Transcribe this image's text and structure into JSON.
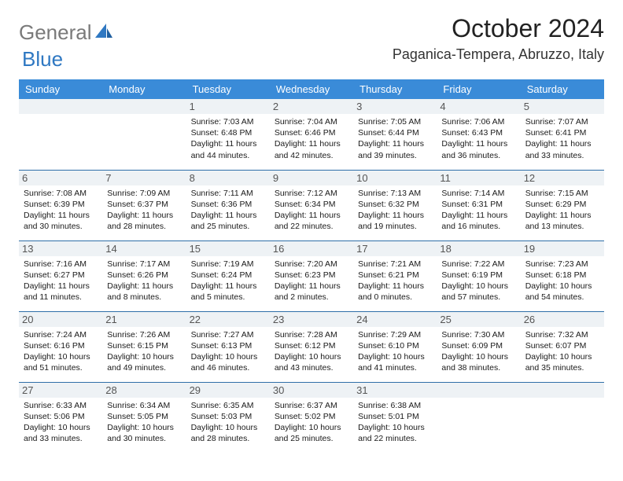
{
  "brand": {
    "text1": "General",
    "text2": "Blue"
  },
  "title": "October 2024",
  "location": "Paganica-Tempera, Abruzzo, Italy",
  "colors": {
    "header_bg": "#3a8bd8",
    "header_text": "#ffffff",
    "row_divider": "#2f6fa8",
    "daynum_bg": "#eef2f5",
    "brand_gray": "#7a7a7a",
    "brand_blue": "#2f78c2"
  },
  "typography": {
    "title_fontsize": 32,
    "location_fontsize": 18,
    "dayheader_fontsize": 13,
    "cell_fontsize": 10.5
  },
  "day_headers": [
    "Sunday",
    "Monday",
    "Tuesday",
    "Wednesday",
    "Thursday",
    "Friday",
    "Saturday"
  ],
  "weeks": [
    [
      null,
      null,
      {
        "n": "1",
        "sunrise": "7:03 AM",
        "sunset": "6:48 PM",
        "daylight": "11 hours and 44 minutes."
      },
      {
        "n": "2",
        "sunrise": "7:04 AM",
        "sunset": "6:46 PM",
        "daylight": "11 hours and 42 minutes."
      },
      {
        "n": "3",
        "sunrise": "7:05 AM",
        "sunset": "6:44 PM",
        "daylight": "11 hours and 39 minutes."
      },
      {
        "n": "4",
        "sunrise": "7:06 AM",
        "sunset": "6:43 PM",
        "daylight": "11 hours and 36 minutes."
      },
      {
        "n": "5",
        "sunrise": "7:07 AM",
        "sunset": "6:41 PM",
        "daylight": "11 hours and 33 minutes."
      }
    ],
    [
      {
        "n": "6",
        "sunrise": "7:08 AM",
        "sunset": "6:39 PM",
        "daylight": "11 hours and 30 minutes."
      },
      {
        "n": "7",
        "sunrise": "7:09 AM",
        "sunset": "6:37 PM",
        "daylight": "11 hours and 28 minutes."
      },
      {
        "n": "8",
        "sunrise": "7:11 AM",
        "sunset": "6:36 PM",
        "daylight": "11 hours and 25 minutes."
      },
      {
        "n": "9",
        "sunrise": "7:12 AM",
        "sunset": "6:34 PM",
        "daylight": "11 hours and 22 minutes."
      },
      {
        "n": "10",
        "sunrise": "7:13 AM",
        "sunset": "6:32 PM",
        "daylight": "11 hours and 19 minutes."
      },
      {
        "n": "11",
        "sunrise": "7:14 AM",
        "sunset": "6:31 PM",
        "daylight": "11 hours and 16 minutes."
      },
      {
        "n": "12",
        "sunrise": "7:15 AM",
        "sunset": "6:29 PM",
        "daylight": "11 hours and 13 minutes."
      }
    ],
    [
      {
        "n": "13",
        "sunrise": "7:16 AM",
        "sunset": "6:27 PM",
        "daylight": "11 hours and 11 minutes."
      },
      {
        "n": "14",
        "sunrise": "7:17 AM",
        "sunset": "6:26 PM",
        "daylight": "11 hours and 8 minutes."
      },
      {
        "n": "15",
        "sunrise": "7:19 AM",
        "sunset": "6:24 PM",
        "daylight": "11 hours and 5 minutes."
      },
      {
        "n": "16",
        "sunrise": "7:20 AM",
        "sunset": "6:23 PM",
        "daylight": "11 hours and 2 minutes."
      },
      {
        "n": "17",
        "sunrise": "7:21 AM",
        "sunset": "6:21 PM",
        "daylight": "11 hours and 0 minutes."
      },
      {
        "n": "18",
        "sunrise": "7:22 AM",
        "sunset": "6:19 PM",
        "daylight": "10 hours and 57 minutes."
      },
      {
        "n": "19",
        "sunrise": "7:23 AM",
        "sunset": "6:18 PM",
        "daylight": "10 hours and 54 minutes."
      }
    ],
    [
      {
        "n": "20",
        "sunrise": "7:24 AM",
        "sunset": "6:16 PM",
        "daylight": "10 hours and 51 minutes."
      },
      {
        "n": "21",
        "sunrise": "7:26 AM",
        "sunset": "6:15 PM",
        "daylight": "10 hours and 49 minutes."
      },
      {
        "n": "22",
        "sunrise": "7:27 AM",
        "sunset": "6:13 PM",
        "daylight": "10 hours and 46 minutes."
      },
      {
        "n": "23",
        "sunrise": "7:28 AM",
        "sunset": "6:12 PM",
        "daylight": "10 hours and 43 minutes."
      },
      {
        "n": "24",
        "sunrise": "7:29 AM",
        "sunset": "6:10 PM",
        "daylight": "10 hours and 41 minutes."
      },
      {
        "n": "25",
        "sunrise": "7:30 AM",
        "sunset": "6:09 PM",
        "daylight": "10 hours and 38 minutes."
      },
      {
        "n": "26",
        "sunrise": "7:32 AM",
        "sunset": "6:07 PM",
        "daylight": "10 hours and 35 minutes."
      }
    ],
    [
      {
        "n": "27",
        "sunrise": "6:33 AM",
        "sunset": "5:06 PM",
        "daylight": "10 hours and 33 minutes."
      },
      {
        "n": "28",
        "sunrise": "6:34 AM",
        "sunset": "5:05 PM",
        "daylight": "10 hours and 30 minutes."
      },
      {
        "n": "29",
        "sunrise": "6:35 AM",
        "sunset": "5:03 PM",
        "daylight": "10 hours and 28 minutes."
      },
      {
        "n": "30",
        "sunrise": "6:37 AM",
        "sunset": "5:02 PM",
        "daylight": "10 hours and 25 minutes."
      },
      {
        "n": "31",
        "sunrise": "6:38 AM",
        "sunset": "5:01 PM",
        "daylight": "10 hours and 22 minutes."
      },
      null,
      null
    ]
  ],
  "labels": {
    "sunrise": "Sunrise:",
    "sunset": "Sunset:",
    "daylight": "Daylight:"
  }
}
